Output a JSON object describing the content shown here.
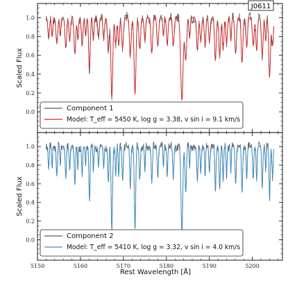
{
  "figure": {
    "badge": "J0611"
  },
  "chart_data": [
    {
      "type": "line",
      "panel": "top",
      "xlabel": "",
      "ylabel": "Scaled Flux",
      "xlim": [
        5150,
        5207
      ],
      "ylim": [
        -0.22,
        1.15
      ],
      "xticks": [
        5150,
        5160,
        5170,
        5180,
        5190,
        5200
      ],
      "yticks": [
        0.0,
        0.2,
        0.4,
        0.6,
        0.8,
        1.0
      ],
      "ytick_labels": [
        "0.0",
        "0.2",
        "0.4",
        "0.6",
        "0.8",
        "1.0"
      ],
      "legend_position": "lower-left",
      "x_range": [
        5152.0,
        5205.0
      ],
      "line_centers": [
        5152.6,
        5153.4,
        5154.5,
        5155.3,
        5156.6,
        5157.5,
        5158.7,
        5159.4,
        5160.4,
        5161.2,
        5162.1,
        5163.0,
        5164.2,
        5165.4,
        5166.5,
        5167.3,
        5168.2,
        5168.9,
        5169.8,
        5171.6,
        5172.7,
        5173.8,
        5175.0,
        5176.6,
        5178.0,
        5179.3,
        5180.2,
        5181.6,
        5183.6,
        5184.5,
        5185.4,
        5187.2,
        5188.0,
        5189.0,
        5190.0,
        5191.4,
        5192.4,
        5193.2,
        5194.0,
        5195.0,
        5196.1,
        5197.6,
        5198.7,
        5200.2,
        5201.0,
        5202.3,
        5203.1,
        5204.0,
        5204.7
      ],
      "line_depths": [
        0.22,
        0.2,
        0.28,
        0.18,
        0.32,
        0.24,
        0.38,
        0.22,
        0.3,
        0.2,
        0.55,
        0.25,
        0.2,
        0.22,
        0.35,
        0.85,
        0.28,
        0.3,
        0.32,
        0.4,
        0.82,
        0.33,
        0.25,
        0.38,
        0.3,
        0.2,
        0.28,
        0.3,
        0.88,
        0.45,
        0.22,
        0.35,
        0.25,
        0.3,
        0.25,
        0.45,
        0.4,
        0.35,
        0.28,
        0.25,
        0.38,
        0.48,
        0.32,
        0.3,
        0.35,
        0.4,
        0.25,
        0.62,
        0.3
      ],
      "line_widths": [
        0.18,
        0.15,
        0.2,
        0.15,
        0.2,
        0.18,
        0.2,
        0.15,
        0.18,
        0.15,
        0.18,
        0.15,
        0.18,
        0.18,
        0.2,
        0.22,
        0.18,
        0.18,
        0.2,
        0.2,
        0.22,
        0.2,
        0.18,
        0.2,
        0.2,
        0.15,
        0.18,
        0.2,
        0.28,
        0.22,
        0.15,
        0.2,
        0.18,
        0.18,
        0.18,
        0.2,
        0.2,
        0.18,
        0.18,
        0.15,
        0.2,
        0.2,
        0.18,
        0.2,
        0.18,
        0.2,
        0.15,
        0.2,
        0.2
      ],
      "continuum": 1.0,
      "noise": 0.045,
      "series": [
        {
          "name": "Component 1",
          "role": "observed",
          "color": "#5a5a5a"
        },
        {
          "name": "Model",
          "role": "model",
          "color": "#d62728"
        }
      ],
      "legend": [
        {
          "label": "Component 1"
        },
        {
          "label": "Model: T_eff = 5450 K, log g = 3.38, v sin i = 9.1 km/s"
        }
      ]
    },
    {
      "type": "line",
      "panel": "bottom",
      "xlabel": "Rest Wavelength [Å]",
      "ylabel": "Scaled Flux",
      "xlim": [
        5150,
        5207
      ],
      "ylim": [
        -0.22,
        1.15
      ],
      "xticks": [
        5150,
        5160,
        5170,
        5180,
        5190,
        5200
      ],
      "yticks": [
        0.0,
        0.2,
        0.4,
        0.6,
        0.8,
        1.0
      ],
      "ytick_labels": [
        "0.0",
        "0.2",
        "0.4",
        "0.6",
        "0.8",
        "1.0"
      ],
      "xtick_labels": [
        "5150",
        "5160",
        "5170",
        "5180",
        "5190",
        "5200"
      ],
      "legend_position": "lower-left",
      "x_range": [
        5152.0,
        5205.0
      ],
      "line_centers": [
        5152.6,
        5153.4,
        5154.5,
        5155.3,
        5156.6,
        5157.5,
        5158.7,
        5159.4,
        5160.4,
        5161.2,
        5162.1,
        5163.0,
        5164.2,
        5165.4,
        5166.5,
        5167.3,
        5168.2,
        5168.9,
        5169.8,
        5171.6,
        5172.7,
        5173.8,
        5175.0,
        5176.6,
        5178.0,
        5179.3,
        5180.2,
        5181.6,
        5183.6,
        5184.5,
        5185.4,
        5187.2,
        5188.0,
        5189.0,
        5190.0,
        5191.4,
        5192.4,
        5193.2,
        5194.0,
        5195.0,
        5196.1,
        5197.6,
        5198.7,
        5200.2,
        5201.0,
        5202.3,
        5203.1,
        5204.0,
        5204.7
      ],
      "line_depths": [
        0.25,
        0.22,
        0.32,
        0.2,
        0.35,
        0.26,
        0.42,
        0.25,
        0.33,
        0.22,
        0.58,
        0.28,
        0.22,
        0.24,
        0.38,
        0.92,
        0.3,
        0.33,
        0.35,
        0.42,
        0.9,
        0.35,
        0.28,
        0.4,
        0.32,
        0.22,
        0.3,
        0.32,
        0.93,
        0.48,
        0.24,
        0.38,
        0.28,
        0.32,
        0.28,
        0.48,
        0.42,
        0.38,
        0.3,
        0.28,
        0.4,
        0.5,
        0.35,
        0.32,
        0.38,
        0.42,
        0.28,
        0.55,
        0.32
      ],
      "line_widths": [
        0.12,
        0.1,
        0.14,
        0.1,
        0.14,
        0.12,
        0.14,
        0.1,
        0.12,
        0.1,
        0.13,
        0.1,
        0.12,
        0.12,
        0.14,
        0.16,
        0.12,
        0.12,
        0.14,
        0.14,
        0.16,
        0.14,
        0.12,
        0.14,
        0.14,
        0.1,
        0.12,
        0.14,
        0.2,
        0.16,
        0.1,
        0.14,
        0.12,
        0.12,
        0.12,
        0.14,
        0.14,
        0.12,
        0.12,
        0.1,
        0.14,
        0.14,
        0.12,
        0.14,
        0.12,
        0.14,
        0.1,
        0.14,
        0.14
      ],
      "continuum": 1.0,
      "noise": 0.04,
      "series": [
        {
          "name": "Component 2",
          "role": "observed",
          "color": "#5a5a5a"
        },
        {
          "name": "Model",
          "role": "model",
          "color": "#3a8fc4"
        }
      ],
      "legend": [
        {
          "label": "Component 2"
        },
        {
          "label": "Model: T_eff = 5410 K, log g = 3.32, v sin i = 4.0 km/s"
        }
      ]
    }
  ]
}
